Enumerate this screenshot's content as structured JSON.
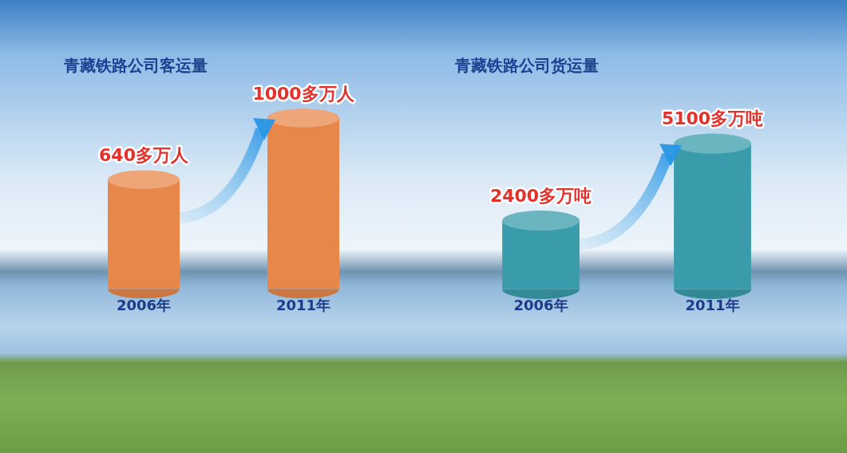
{
  "chart_data": [
    {
      "type": "bar",
      "title": "青藏铁路公司客运量",
      "categories": [
        "2006年",
        "2011年"
      ],
      "values": [
        640,
        1000
      ],
      "value_labels": [
        "640多万人",
        "1000多万人"
      ],
      "color": "#e8874a",
      "data_labels": true,
      "tick_labels": "x",
      "grid": false
    },
    {
      "type": "bar",
      "title": "青藏铁路公司货运量",
      "categories": [
        "2006年",
        "2011年"
      ],
      "values": [
        2400,
        5100
      ],
      "value_labels": [
        "2400多万吨",
        "5100多万吨"
      ],
      "color": "#3a9cab",
      "data_labels": true,
      "tick_labels": "x",
      "grid": false
    }
  ]
}
